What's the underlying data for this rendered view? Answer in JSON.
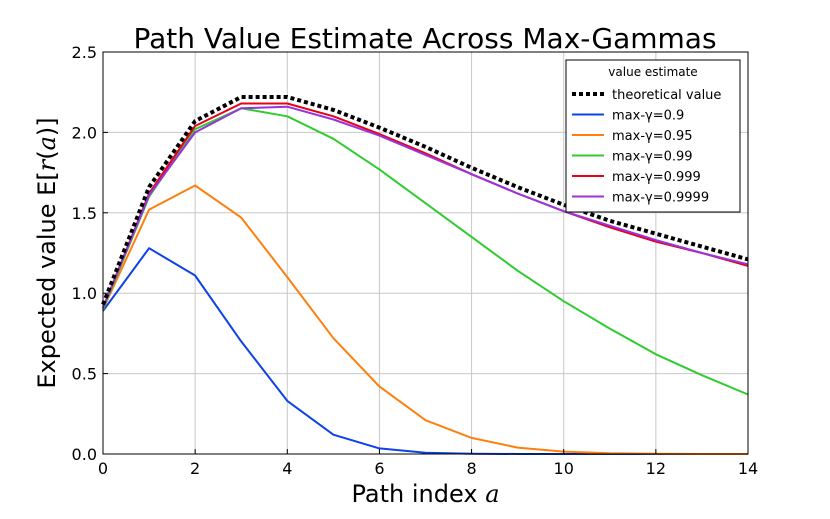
{
  "chart_data": {
    "type": "line",
    "title": "Path Value Estimate Across Max-Gammas",
    "xlabel": "Path index a",
    "ylabel": "Expected value E[r(a)]",
    "xlim": [
      0,
      14
    ],
    "ylim": [
      0,
      2.5
    ],
    "xticks": [
      0,
      2,
      4,
      6,
      8,
      10,
      12,
      14
    ],
    "yticks": [
      0.0,
      0.5,
      1.0,
      1.5,
      2.0,
      2.5
    ],
    "xtick_labels": [
      "0",
      "2",
      "4",
      "6",
      "8",
      "10",
      "12",
      "14"
    ],
    "ytick_labels": [
      "0.0",
      "0.5",
      "1.0",
      "1.5",
      "2.0",
      "2.5"
    ],
    "grid": true,
    "legend": {
      "title": "value estimate",
      "position": "top-right"
    },
    "x": [
      0,
      1,
      2,
      3,
      4,
      5,
      6,
      7,
      8,
      9,
      10,
      11,
      12,
      13,
      14
    ],
    "series": [
      {
        "name": "theoretical value",
        "color": "#000000",
        "style": "dotted",
        "values": [
          0.93,
          1.66,
          2.07,
          2.22,
          2.22,
          2.14,
          2.03,
          1.91,
          1.78,
          1.66,
          1.55,
          1.45,
          1.37,
          1.29,
          1.21
        ]
      },
      {
        "name": "max-γ=0.9",
        "color": "#0e42e6",
        "style": "solid",
        "values": [
          0.89,
          1.28,
          1.11,
          0.7,
          0.33,
          0.12,
          0.035,
          0.008,
          0.002,
          0.0,
          0.0,
          0.0,
          0.0,
          0.0,
          0.0
        ]
      },
      {
        "name": "max-γ=0.95",
        "color": "#ff7f0e",
        "style": "solid",
        "values": [
          0.9,
          1.52,
          1.67,
          1.47,
          1.1,
          0.72,
          0.42,
          0.21,
          0.1,
          0.04,
          0.015,
          0.005,
          0.002,
          0.0,
          0.0
        ]
      },
      {
        "name": "max-γ=0.99",
        "color": "#2ecc2e",
        "style": "solid",
        "values": [
          0.9,
          1.6,
          2.02,
          2.15,
          2.1,
          1.96,
          1.77,
          1.56,
          1.35,
          1.14,
          0.95,
          0.78,
          0.62,
          0.49,
          0.37
        ]
      },
      {
        "name": "max-γ=0.999",
        "color": "#e6001a",
        "style": "solid",
        "values": [
          0.91,
          1.62,
          2.04,
          2.18,
          2.18,
          2.1,
          1.99,
          1.87,
          1.74,
          1.62,
          1.51,
          1.41,
          1.32,
          1.25,
          1.17
        ]
      },
      {
        "name": "max-γ=0.9999",
        "color": "#9933dd",
        "style": "solid",
        "values": [
          0.91,
          1.61,
          2.0,
          2.15,
          2.16,
          2.08,
          1.98,
          1.86,
          1.74,
          1.62,
          1.51,
          1.42,
          1.33,
          1.25,
          1.18
        ]
      }
    ]
  }
}
